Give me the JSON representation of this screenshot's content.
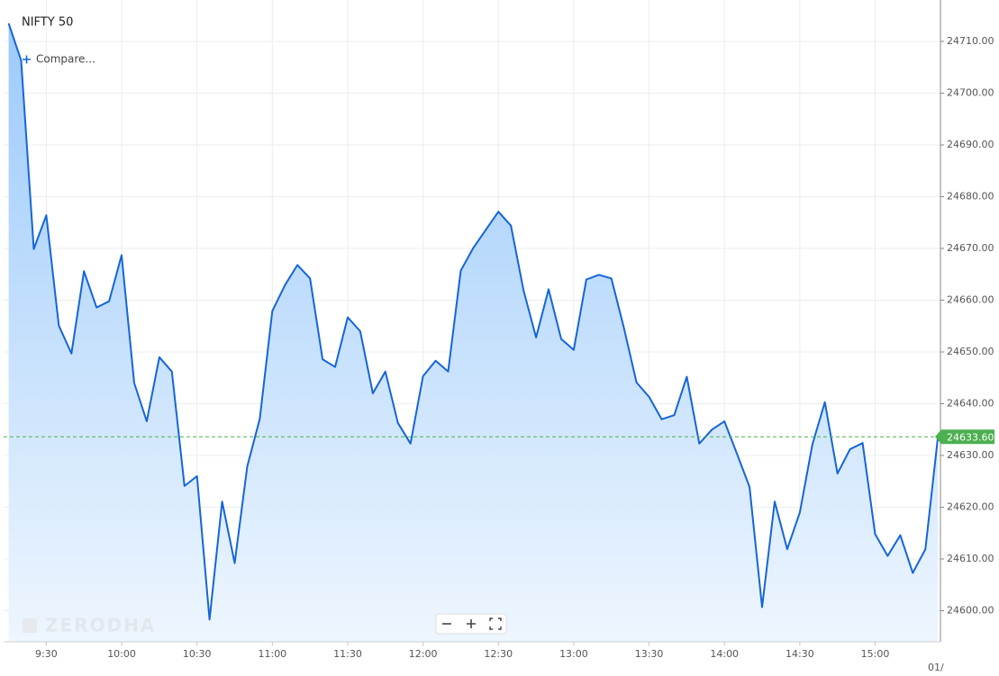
{
  "chart_data": {
    "type": "area",
    "title": "NIFTY 50",
    "compare_label": "Compare...",
    "watermark": "ZERODHA",
    "date_label": "01/",
    "color": "#1565d8",
    "x": [
      "9:15",
      "9:20",
      "9:25",
      "9:30",
      "9:35",
      "9:40",
      "9:45",
      "9:50",
      "9:55",
      "10:00",
      "10:05",
      "10:10",
      "10:15",
      "10:20",
      "10:25",
      "10:30",
      "10:35",
      "10:40",
      "10:45",
      "10:50",
      "10:55",
      "11:00",
      "11:05",
      "11:10",
      "11:15",
      "11:20",
      "11:25",
      "11:30",
      "11:35",
      "11:40",
      "11:45",
      "11:50",
      "11:55",
      "12:00",
      "12:05",
      "12:10",
      "12:15",
      "12:20",
      "12:25",
      "12:30",
      "12:35",
      "12:40",
      "12:45",
      "12:50",
      "12:55",
      "13:00",
      "13:05",
      "13:10",
      "13:15",
      "13:20",
      "13:25",
      "13:30",
      "13:35",
      "13:40",
      "13:45",
      "13:50",
      "13:55",
      "14:00",
      "14:05",
      "14:10",
      "14:15",
      "14:20",
      "14:25",
      "14:30",
      "14:35",
      "14:40",
      "14:45",
      "14:50",
      "14:55",
      "15:00",
      "15:05",
      "15:10",
      "15:15",
      "15:20",
      "15:25"
    ],
    "values": [
      24713.5,
      24706.3,
      24669.9,
      24676.4,
      24655.1,
      24649.7,
      24665.6,
      24658.6,
      24659.8,
      24668.7,
      24644.0,
      24636.6,
      24649.0,
      24646.2,
      24624.1,
      24626.0,
      24598.3,
      24621.1,
      24609.2,
      24627.9,
      24637.1,
      24657.9,
      24662.9,
      24666.8,
      24664.2,
      24648.6,
      24647.1,
      24656.7,
      24654.0,
      24642.0,
      24646.2,
      24636.3,
      24632.3,
      24645.3,
      24648.3,
      24646.2,
      24665.7,
      24670.1,
      24673.6,
      24677.1,
      24674.4,
      24661.9,
      24652.8,
      24662.1,
      24652.5,
      24650.4,
      24664.0,
      24664.9,
      24664.2,
      24654.6,
      24644.1,
      24641.3,
      24637.0,
      24637.8,
      24645.2,
      24632.3,
      24635.0,
      24636.6,
      24630.3,
      24623.9,
      24600.7,
      24621.1,
      24611.9,
      24619.0,
      24632.1,
      24640.3,
      24626.5,
      24631.2,
      24632.4,
      24614.8,
      24610.6,
      24614.6,
      24607.3,
      24611.9,
      24633.6
    ],
    "xlim": [
      "9:13",
      "15:26"
    ],
    "xticks": [
      "9:30",
      "10:00",
      "10:30",
      "11:00",
      "11:30",
      "12:00",
      "12:30",
      "13:00",
      "13:30",
      "14:00",
      "14:30",
      "15:00"
    ],
    "ylim": [
      24594,
      24718
    ],
    "yticks": [
      {
        "value": 24600,
        "label": "24600.00"
      },
      {
        "value": 24610,
        "label": "24610.00"
      },
      {
        "value": 24620,
        "label": "24620.00"
      },
      {
        "value": 24630,
        "label": "24630.00"
      },
      {
        "value": 24640,
        "label": "24640.00"
      },
      {
        "value": 24650,
        "label": "24650.00"
      },
      {
        "value": 24660,
        "label": "24660.00"
      },
      {
        "value": 24670,
        "label": "24670.00"
      },
      {
        "value": 24680,
        "label": "24680.00"
      },
      {
        "value": 24690,
        "label": "24690.00"
      },
      {
        "value": 24700,
        "label": "24700.00"
      },
      {
        "value": 24710,
        "label": "24710.00"
      }
    ],
    "last_price": {
      "value": 24633.6,
      "label": "24633.60",
      "color": "#4caf50"
    },
    "grid": true
  }
}
